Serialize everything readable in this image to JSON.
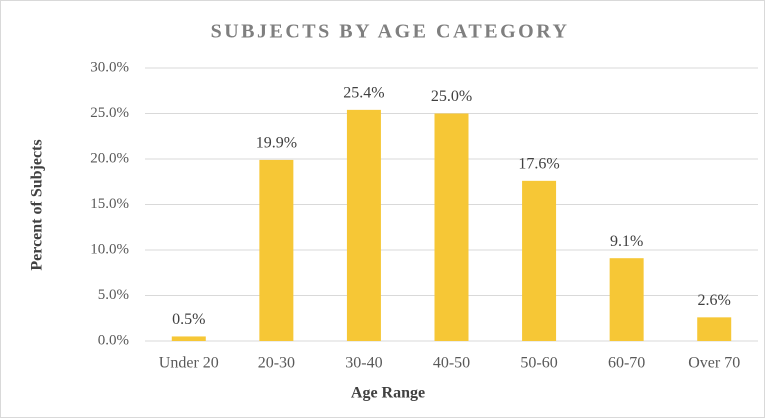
{
  "chart_data": {
    "type": "bar",
    "title": "SUBJECTS BY AGE CATEGORY",
    "x_label": "Age Range",
    "y_label": "Percent of Subjects",
    "categories": [
      "Under 20",
      "20-30",
      "30-40",
      "40-50",
      "50-60",
      "60-70",
      "Over 70"
    ],
    "values": [
      0.5,
      19.9,
      25.4,
      25.0,
      17.6,
      9.1,
      2.6
    ],
    "value_labels": [
      "0.5%",
      "19.9%",
      "25.4%",
      "25.0%",
      "17.6%",
      "9.1%",
      "2.6%"
    ],
    "color": "#f6c736",
    "ylim": [
      0,
      30
    ],
    "yticks": [
      {
        "value": 0,
        "label": "0.0%"
      },
      {
        "value": 5,
        "label": "5.0%"
      },
      {
        "value": 10,
        "label": "10.0%"
      },
      {
        "value": 15,
        "label": "15.0%"
      },
      {
        "value": 20,
        "label": "20.0%"
      },
      {
        "value": 25,
        "label": "25.0%"
      },
      {
        "value": 30,
        "label": "30.0%"
      }
    ],
    "grid": true
  }
}
